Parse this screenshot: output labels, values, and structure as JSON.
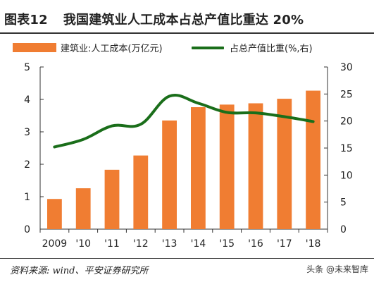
{
  "header": {
    "figure_label": "图表12",
    "title": "我国建筑业人工成本占总产值比重达 20%"
  },
  "source": "资料来源: wind、平安证券研究所",
  "watermark": "头条 @未来智库",
  "colors": {
    "bar": "#f07d32",
    "line": "#1a6e1a"
  },
  "chart_data": {
    "type": "bar",
    "categories": [
      "2009",
      "'10",
      "'11",
      "'12",
      "'13",
      "'14",
      "'15",
      "'16",
      "'17",
      "'18"
    ],
    "series": [
      {
        "name": "建筑业:人工成本(万亿元)",
        "type": "bar",
        "axis": "left",
        "values": [
          0.93,
          1.26,
          1.83,
          2.27,
          3.35,
          3.76,
          3.84,
          3.88,
          4.02,
          4.27
        ]
      },
      {
        "name": "占总产值比重(%,右)",
        "type": "line",
        "axis": "right",
        "values": [
          15.2,
          16.6,
          19.1,
          19.4,
          24.6,
          23.3,
          21.6,
          21.5,
          20.8,
          19.9
        ]
      }
    ],
    "left_axis": {
      "min": 0,
      "max": 5,
      "ticks": [
        0,
        1,
        2,
        3,
        4,
        5
      ]
    },
    "right_axis": {
      "min": 0,
      "max": 30,
      "ticks": [
        0,
        5,
        10,
        15,
        20,
        25,
        30
      ]
    },
    "legend_position": "top",
    "grid": false
  }
}
